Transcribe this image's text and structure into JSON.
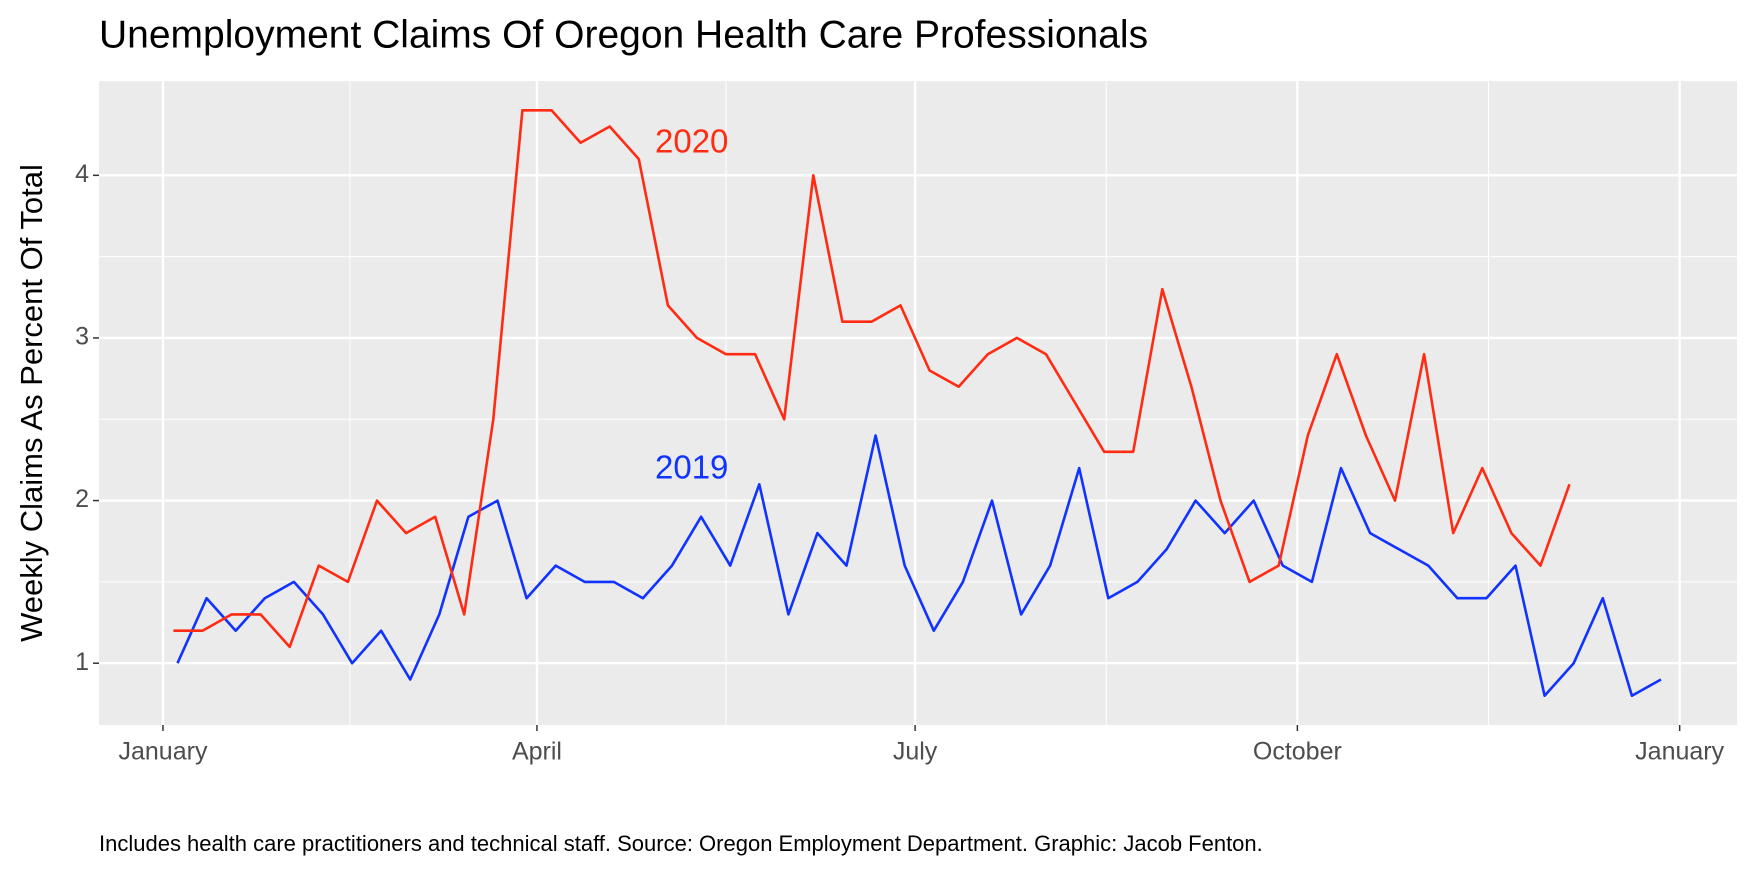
{
  "chart_data": {
    "type": "line",
    "title": "Unemployment Claims Of Oregon Health Care Professionals",
    "y_label": "Weekly Claims As Percent Of Total",
    "caption": "Includes health care practitioners and technical staff. Source: Oregon Employment Department. Graphic: Jacob Fenton.",
    "xlim": [
      -15.4,
      378.8
    ],
    "xticks": [
      {
        "value": 0,
        "label": "January"
      },
      {
        "value": 90,
        "label": "April"
      },
      {
        "value": 181,
        "label": "July"
      },
      {
        "value": 273,
        "label": "October"
      },
      {
        "value": 365,
        "label": "January"
      }
    ],
    "ylim": [
      0.62,
      4.58
    ],
    "yticks": [
      1,
      2,
      3,
      4
    ],
    "grid": true,
    "series": [
      {
        "name": "2019",
        "color": "#1133ff",
        "x": [
          3.5,
          10.5,
          17.5,
          24.5,
          31.5,
          38.5,
          45.5,
          52.5,
          59.5,
          66.5,
          73.5,
          80.5,
          87.5,
          94.5,
          101.5,
          108.5,
          115.5,
          122.5,
          129.5,
          136.5,
          143.5,
          150.5,
          157.5,
          164.5,
          171.5,
          178.5,
          185.5,
          192.5,
          199.5,
          206.5,
          213.5,
          220.5,
          227.5,
          234.5,
          241.5,
          248.5,
          255.5,
          262.5,
          269.5,
          276.5,
          283.5,
          290.5,
          297.5,
          304.5,
          311.5,
          318.5,
          325.5,
          332.5,
          339.5,
          346.5,
          353.5,
          360.5
        ],
        "values": [
          1.0,
          1.4,
          1.2,
          1.4,
          1.5,
          1.3,
          1.0,
          1.2,
          0.9,
          1.3,
          1.9,
          2.0,
          1.4,
          1.6,
          1.5,
          1.5,
          1.4,
          1.6,
          1.9,
          1.6,
          2.1,
          1.3,
          1.8,
          1.6,
          2.4,
          1.6,
          1.2,
          1.5,
          2.0,
          1.3,
          1.6,
          2.2,
          1.4,
          1.5,
          1.7,
          2.0,
          1.8,
          2.0,
          1.6,
          1.5,
          2.2,
          1.8,
          1.7,
          1.6,
          1.4,
          1.4,
          1.6,
          0.8,
          1.0,
          1.4,
          0.8,
          0.9
        ]
      },
      {
        "name": "2020",
        "color": "#ff2b12",
        "x": [
          2.5,
          9.5,
          16.5,
          23.5,
          30.5,
          37.5,
          44.5,
          51.5,
          58.5,
          65.5,
          72.5,
          79.5,
          86.5,
          93.5,
          100.5,
          107.5,
          114.5,
          121.5,
          128.5,
          135.5,
          142.5,
          149.5,
          156.5,
          163.5,
          170.5,
          177.5,
          184.5,
          191.5,
          198.5,
          205.5,
          212.5,
          219.5,
          226.5,
          233.5,
          240.5,
          247.5,
          254.5,
          261.5,
          268.5,
          275.5,
          282.5,
          289.5,
          296.5,
          303.5,
          310.5,
          317.5,
          324.5,
          331.5,
          338.5
        ],
        "values": [
          1.2,
          1.2,
          1.3,
          1.3,
          1.1,
          1.6,
          1.5,
          2.0,
          1.8,
          1.9,
          1.3,
          2.5,
          4.4,
          4.4,
          4.2,
          4.3,
          4.1,
          3.2,
          3.0,
          2.9,
          2.9,
          2.5,
          4.0,
          3.1,
          3.1,
          3.2,
          2.8,
          2.7,
          2.9,
          3.0,
          2.9,
          2.6,
          2.3,
          2.3,
          3.3,
          2.7,
          2.0,
          1.5,
          1.6,
          2.4,
          2.9,
          2.4,
          2.0,
          2.9,
          1.8,
          2.2,
          1.8,
          1.6,
          2.1
        ]
      }
    ]
  }
}
